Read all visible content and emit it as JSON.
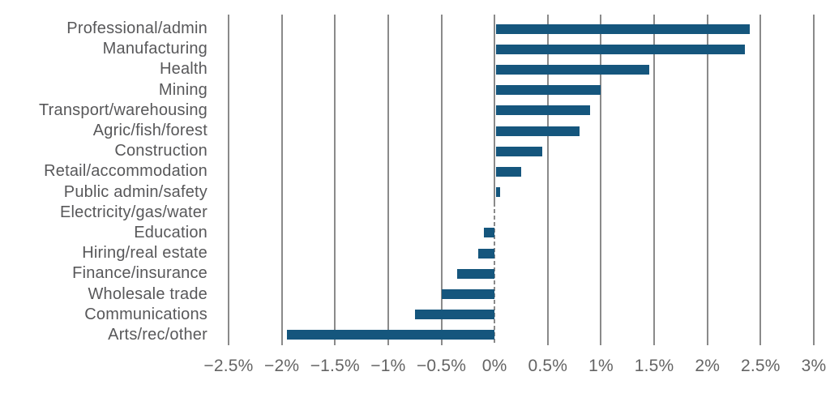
{
  "chart_data": {
    "type": "bar",
    "orientation": "horizontal",
    "title": "",
    "xlabel": "",
    "ylabel": "",
    "unit": "%",
    "xlim": [
      -2.5,
      3
    ],
    "categories": [
      "Professional/admin",
      "Manufacturing",
      "Health",
      "Mining",
      "Transport/warehousing",
      "Agric/fish/forest",
      "Construction",
      "Retail/accommodation",
      "Public admin/safety",
      "Electricity/gas/water",
      "Education",
      "Hiring/real estate",
      "Finance/insurance",
      "Wholesale trade",
      "Communications",
      "Arts/rec/other"
    ],
    "values": [
      2.4,
      2.35,
      1.45,
      1.0,
      0.9,
      0.8,
      0.45,
      0.25,
      0.05,
      0.0,
      -0.1,
      -0.15,
      -0.35,
      -0.5,
      -0.75,
      -1.95
    ],
    "x_ticks": [
      {
        "value": -2.5,
        "label": "−2.5%"
      },
      {
        "value": -2.0,
        "label": "−2%"
      },
      {
        "value": -1.5,
        "label": "−1.5%"
      },
      {
        "value": -1.0,
        "label": "−1%"
      },
      {
        "value": -0.5,
        "label": "−0.5%"
      },
      {
        "value": 0.0,
        "label": "0%"
      },
      {
        "value": 0.5,
        "label": "0.5%"
      },
      {
        "value": 1.0,
        "label": "1%"
      },
      {
        "value": 1.5,
        "label": "1.5%"
      },
      {
        "value": 2.0,
        "label": "2%"
      },
      {
        "value": 2.5,
        "label": "2.5%"
      },
      {
        "value": 3.0,
        "label": "3%"
      }
    ],
    "legend": "none",
    "grid": {
      "vertical_gridlines": true,
      "zero_line_style": "solid over positive rows, dashed over negative rows"
    },
    "colors": {
      "bar": "#15567d",
      "gridline": "#8a8a8a",
      "zero_line": "#8a8a8a",
      "category_label": "#58585a",
      "tick_label": "#646464",
      "background": "#ffffff"
    }
  }
}
